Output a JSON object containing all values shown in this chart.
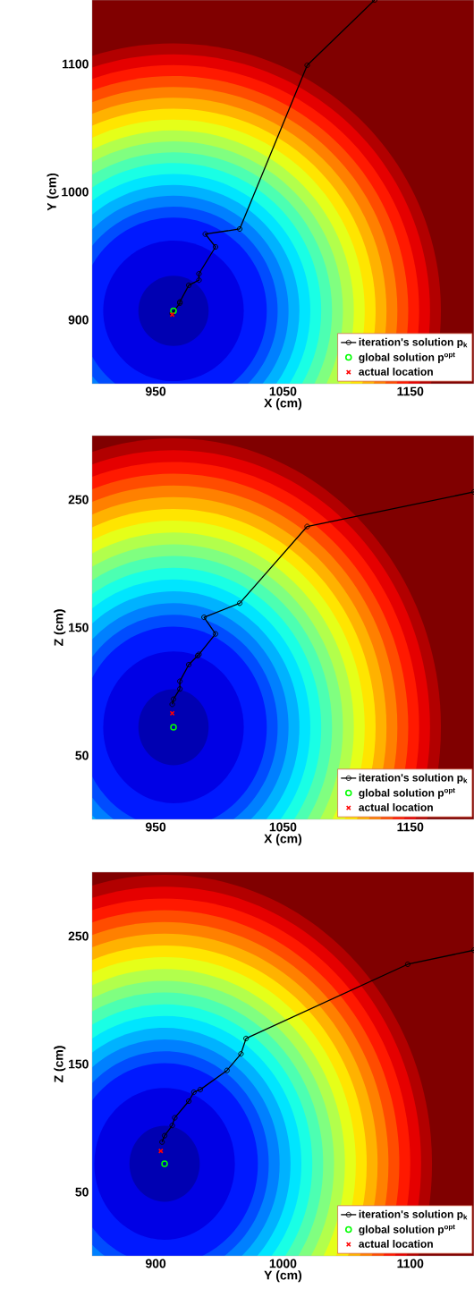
{
  "chart_data": [
    {
      "type": "line",
      "xlabel": "X (cm)",
      "ylabel": "Y (cm)",
      "xlim": [
        900,
        1200
      ],
      "ylim": [
        850,
        1150
      ],
      "xticks": [
        950,
        1050,
        1150
      ],
      "yticks": [
        900,
        1000,
        1100
      ],
      "legend": "bottom right",
      "series": [
        {
          "name": "iteration's solution p$_{k}$",
          "color": "#000000",
          "marker": "circle",
          "x": [
            1122,
            1069,
            1016,
            989,
            997,
            984,
            984,
            976,
            969,
            969,
            964,
            963
          ],
          "values": [
            1150,
            1099,
            971,
            967,
            957,
            936,
            931,
            927,
            914,
            913,
            null,
            905
          ]
        },
        {
          "name": "global solution p$^{opt}$",
          "type": "scatter",
          "color": "#00ff00",
          "marker": "circle",
          "x": [
            964
          ],
          "values": [
            907
          ]
        },
        {
          "name": "actual location",
          "type": "scatter",
          "color": "#ff0000",
          "marker": "cross",
          "x": [
            963
          ],
          "values": [
            904
          ]
        }
      ]
    },
    {
      "type": "line",
      "xlabel": "X (cm)",
      "ylabel": "Z (cm)",
      "xlim": [
        900,
        1200
      ],
      "ylim": [
        0,
        300
      ],
      "xticks": [
        950,
        1050,
        1150
      ],
      "yticks": [
        50,
        150,
        250
      ],
      "legend": "bottom right",
      "series": [
        {
          "name": "iteration's solution p$_{k}$",
          "color": "#000000",
          "marker": "circle",
          "x": [
            1200,
            1069,
            1016,
            988,
            997,
            984,
            983,
            976,
            969,
            969,
            964,
            963
          ],
          "values": [
            256,
            229,
            169,
            158,
            145,
            129,
            128,
            121,
            108,
            102,
            94,
            90
          ]
        },
        {
          "name": "global solution p$^{opt}$",
          "type": "scatter",
          "color": "#00ff00",
          "marker": "circle",
          "x": [
            964
          ],
          "values": [
            72
          ]
        },
        {
          "name": "actual location",
          "type": "scatter",
          "color": "#ff0000",
          "marker": "cross",
          "x": [
            963
          ],
          "values": [
            83
          ]
        }
      ]
    },
    {
      "type": "line",
      "xlabel": "Y (cm)",
      "ylabel": "Z (cm)",
      "xlim": [
        850,
        1150
      ],
      "ylim": [
        0,
        300
      ],
      "xticks": [
        900,
        1000,
        1100
      ],
      "yticks": [
        50,
        150,
        250
      ],
      "legend": "bottom right",
      "series": [
        {
          "name": "iteration's solution p$_{k}$",
          "color": "#000000",
          "marker": "circle",
          "x": [
            1150,
            1098,
            971,
            967,
            956,
            935,
            930,
            926,
            915,
            913,
            907,
            905
          ],
          "values": [
            239,
            228,
            170,
            158,
            145,
            130,
            128,
            121,
            108,
            102,
            94,
            89
          ]
        },
        {
          "name": "global solution p$^{opt}$",
          "type": "scatter",
          "color": "#00ff00",
          "marker": "circle",
          "x": [
            907
          ],
          "values": [
            72
          ]
        },
        {
          "name": "actual location",
          "type": "scatter",
          "color": "#ff0000",
          "marker": "cross",
          "x": [
            904
          ],
          "values": [
            82
          ]
        }
      ]
    }
  ]
}
